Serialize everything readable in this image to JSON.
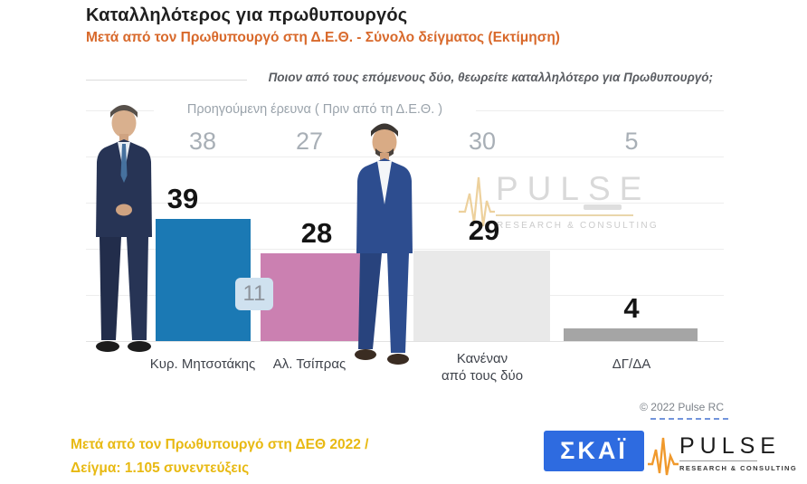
{
  "header": {
    "title": "Καταλληλότερος για πρωθυπουργός",
    "subtitle": "Μετά από τον Πρωθυπουργό στη Δ.Ε.Θ.  -  Σύνολο δείγματος   (Εκτίμηση)"
  },
  "question": "Ποιον από τους επόμενους δύο, θεωρείτε καταλληλότερο για Πρωθυπουργό;",
  "legend": {
    "label": "Προηγούμενη έρευνα  ( Πριν από τη Δ.Ε.Θ. )"
  },
  "chart_data": {
    "type": "bar",
    "categories": [
      "Κυρ. Μητσοτάκης",
      "Αλ. Τσίπρας",
      "Κανέναν\nαπό τους δύο",
      "ΔΓ/ΔΑ"
    ],
    "series": [
      {
        "name": "Προηγούμενη έρευνα ( Πριν από τη Δ.Ε.Θ. )",
        "values": [
          38,
          27,
          30,
          5
        ]
      },
      {
        "name": "Μετά από τον Πρωθυπουργό στη Δ.Ε.Θ. (Εκτίμηση)",
        "values": [
          39,
          28,
          29,
          4
        ]
      }
    ],
    "bar_colors": [
      "#1b79b4",
      "#cb80b1",
      "#e9e9e9",
      "#a5a5a5"
    ],
    "diff_label": "11",
    "ylim": [
      0,
      45
    ],
    "grid": true,
    "title": "Καταλληλότερος για πρωθυπουργός",
    "xlabel": "",
    "ylabel": ""
  },
  "watermark": {
    "name": "PULSE",
    "tagline": "RESEARCH & CONSULTING"
  },
  "copyright": "© 2022 Pulse RC",
  "footer": {
    "note_line1": "Μετά από τον Πρωθυπουργό στη ΔΕΘ  2022  /",
    "note_line2": "Δείγμα:  1.105 συνεντεύξεις",
    "skai_logo": "ΣΚΑΪ",
    "pulse_logo": {
      "name": "PULSE",
      "tagline": "RESEARCH & CONSULTING"
    }
  }
}
